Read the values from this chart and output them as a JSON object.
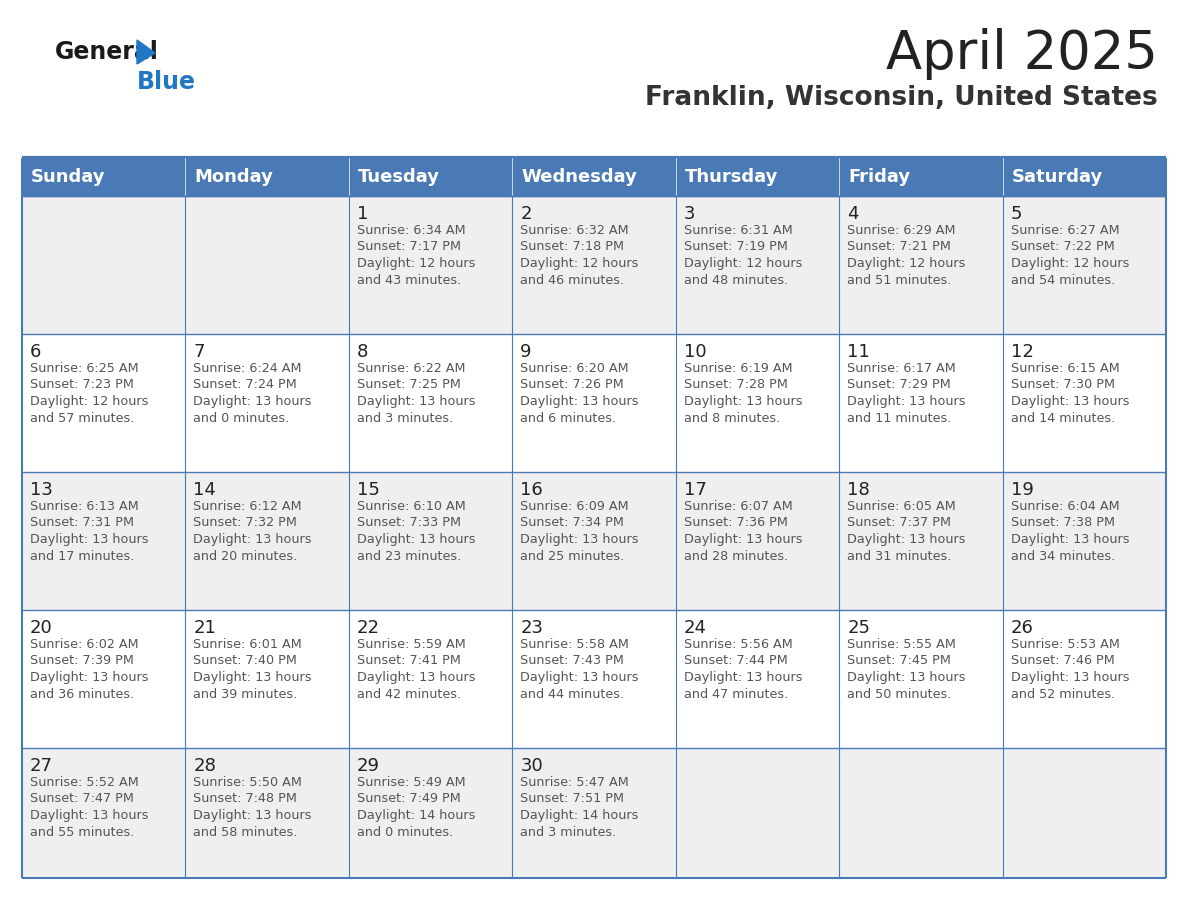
{
  "title": "April 2025",
  "subtitle": "Franklin, Wisconsin, United States",
  "header_bg_color": "#4a7ab5",
  "header_text_color": "#ffffff",
  "cell_bg_even": "#efefef",
  "cell_bg_odd": "#ffffff",
  "border_color": "#4a7ab5",
  "text_color": "#333333",
  "day_names": [
    "Sunday",
    "Monday",
    "Tuesday",
    "Wednesday",
    "Thursday",
    "Friday",
    "Saturday"
  ],
  "title_color": "#222222",
  "subtitle_color": "#333333",
  "general_text_color": "#1a1a1a",
  "blue_text_color": "#2277c4",
  "weeks": [
    [
      {
        "day": "",
        "info": ""
      },
      {
        "day": "",
        "info": ""
      },
      {
        "day": "1",
        "info": "Sunrise: 6:34 AM\nSunset: 7:17 PM\nDaylight: 12 hours\nand 43 minutes."
      },
      {
        "day": "2",
        "info": "Sunrise: 6:32 AM\nSunset: 7:18 PM\nDaylight: 12 hours\nand 46 minutes."
      },
      {
        "day": "3",
        "info": "Sunrise: 6:31 AM\nSunset: 7:19 PM\nDaylight: 12 hours\nand 48 minutes."
      },
      {
        "day": "4",
        "info": "Sunrise: 6:29 AM\nSunset: 7:21 PM\nDaylight: 12 hours\nand 51 minutes."
      },
      {
        "day": "5",
        "info": "Sunrise: 6:27 AM\nSunset: 7:22 PM\nDaylight: 12 hours\nand 54 minutes."
      }
    ],
    [
      {
        "day": "6",
        "info": "Sunrise: 6:25 AM\nSunset: 7:23 PM\nDaylight: 12 hours\nand 57 minutes."
      },
      {
        "day": "7",
        "info": "Sunrise: 6:24 AM\nSunset: 7:24 PM\nDaylight: 13 hours\nand 0 minutes."
      },
      {
        "day": "8",
        "info": "Sunrise: 6:22 AM\nSunset: 7:25 PM\nDaylight: 13 hours\nand 3 minutes."
      },
      {
        "day": "9",
        "info": "Sunrise: 6:20 AM\nSunset: 7:26 PM\nDaylight: 13 hours\nand 6 minutes."
      },
      {
        "day": "10",
        "info": "Sunrise: 6:19 AM\nSunset: 7:28 PM\nDaylight: 13 hours\nand 8 minutes."
      },
      {
        "day": "11",
        "info": "Sunrise: 6:17 AM\nSunset: 7:29 PM\nDaylight: 13 hours\nand 11 minutes."
      },
      {
        "day": "12",
        "info": "Sunrise: 6:15 AM\nSunset: 7:30 PM\nDaylight: 13 hours\nand 14 minutes."
      }
    ],
    [
      {
        "day": "13",
        "info": "Sunrise: 6:13 AM\nSunset: 7:31 PM\nDaylight: 13 hours\nand 17 minutes."
      },
      {
        "day": "14",
        "info": "Sunrise: 6:12 AM\nSunset: 7:32 PM\nDaylight: 13 hours\nand 20 minutes."
      },
      {
        "day": "15",
        "info": "Sunrise: 6:10 AM\nSunset: 7:33 PM\nDaylight: 13 hours\nand 23 minutes."
      },
      {
        "day": "16",
        "info": "Sunrise: 6:09 AM\nSunset: 7:34 PM\nDaylight: 13 hours\nand 25 minutes."
      },
      {
        "day": "17",
        "info": "Sunrise: 6:07 AM\nSunset: 7:36 PM\nDaylight: 13 hours\nand 28 minutes."
      },
      {
        "day": "18",
        "info": "Sunrise: 6:05 AM\nSunset: 7:37 PM\nDaylight: 13 hours\nand 31 minutes."
      },
      {
        "day": "19",
        "info": "Sunrise: 6:04 AM\nSunset: 7:38 PM\nDaylight: 13 hours\nand 34 minutes."
      }
    ],
    [
      {
        "day": "20",
        "info": "Sunrise: 6:02 AM\nSunset: 7:39 PM\nDaylight: 13 hours\nand 36 minutes."
      },
      {
        "day": "21",
        "info": "Sunrise: 6:01 AM\nSunset: 7:40 PM\nDaylight: 13 hours\nand 39 minutes."
      },
      {
        "day": "22",
        "info": "Sunrise: 5:59 AM\nSunset: 7:41 PM\nDaylight: 13 hours\nand 42 minutes."
      },
      {
        "day": "23",
        "info": "Sunrise: 5:58 AM\nSunset: 7:43 PM\nDaylight: 13 hours\nand 44 minutes."
      },
      {
        "day": "24",
        "info": "Sunrise: 5:56 AM\nSunset: 7:44 PM\nDaylight: 13 hours\nand 47 minutes."
      },
      {
        "day": "25",
        "info": "Sunrise: 5:55 AM\nSunset: 7:45 PM\nDaylight: 13 hours\nand 50 minutes."
      },
      {
        "day": "26",
        "info": "Sunrise: 5:53 AM\nSunset: 7:46 PM\nDaylight: 13 hours\nand 52 minutes."
      }
    ],
    [
      {
        "day": "27",
        "info": "Sunrise: 5:52 AM\nSunset: 7:47 PM\nDaylight: 13 hours\nand 55 minutes."
      },
      {
        "day": "28",
        "info": "Sunrise: 5:50 AM\nSunset: 7:48 PM\nDaylight: 13 hours\nand 58 minutes."
      },
      {
        "day": "29",
        "info": "Sunrise: 5:49 AM\nSunset: 7:49 PM\nDaylight: 14 hours\nand 0 minutes."
      },
      {
        "day": "30",
        "info": "Sunrise: 5:47 AM\nSunset: 7:51 PM\nDaylight: 14 hours\nand 3 minutes."
      },
      {
        "day": "",
        "info": ""
      },
      {
        "day": "",
        "info": ""
      },
      {
        "day": "",
        "info": ""
      }
    ]
  ],
  "logo_general_color": "#1a1a1a",
  "logo_blue_color": "#2277c4",
  "logo_triangle_color": "#2277c4",
  "cell_text_color": "#555555",
  "day_num_color": "#222222"
}
